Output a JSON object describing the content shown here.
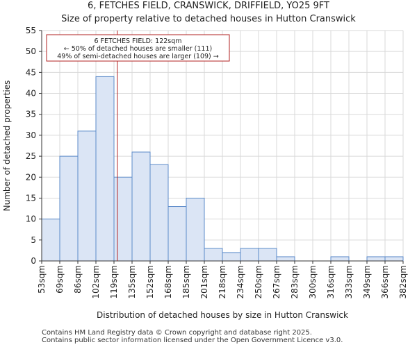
{
  "header": {
    "title": "6, FETCHES FIELD, CRANSWICK, DRIFFIELD, YO25 9FT",
    "subtitle": "Size of property relative to detached houses in Hutton Cranswick"
  },
  "footer": {
    "line1": "Contains HM Land Registry data © Crown copyright and database right 2025.",
    "line2": "Contains public sector information licensed under the Open Government Licence v3.0."
  },
  "colors": {
    "bar_fill": "#dbe5f5",
    "bar_stroke": "#5b8ac9",
    "marker": "#b22222",
    "grid": "#d9d9d9"
  },
  "chart_data": {
    "type": "bar",
    "title": "6, FETCHES FIELD, CRANSWICK, DRIFFIELD, YO25 9FT",
    "subtitle": "Size of property relative to detached houses in Hutton Cranswick",
    "xlabel": "Distribution of detached houses by size in Hutton Cranswick",
    "ylabel": "Number of detached properties",
    "bin_edges": [
      53,
      69,
      86,
      102,
      119,
      135,
      152,
      168,
      185,
      201,
      218,
      234,
      250,
      267,
      283,
      300,
      316,
      333,
      349,
      366,
      382
    ],
    "tick_labels": [
      "53sqm",
      "69sqm",
      "86sqm",
      "102sqm",
      "119sqm",
      "135sqm",
      "152sqm",
      "168sqm",
      "185sqm",
      "201sqm",
      "218sqm",
      "234sqm",
      "250sqm",
      "267sqm",
      "283sqm",
      "300sqm",
      "316sqm",
      "333sqm",
      "349sqm",
      "366sqm",
      "382sqm"
    ],
    "values": [
      10,
      25,
      31,
      44,
      20,
      26,
      23,
      13,
      15,
      3,
      2,
      3,
      3,
      1,
      0,
      0,
      1,
      0,
      1,
      1
    ],
    "ylim": [
      0,
      55
    ],
    "yticks": [
      0,
      5,
      10,
      15,
      20,
      25,
      30,
      35,
      40,
      45,
      50,
      55
    ],
    "grid": true,
    "marker": {
      "value": 122,
      "label": "6 FETCHES FIELD: 122sqm",
      "line2": "← 50% of detached houses are smaller (111)",
      "line3": "49% of semi-detached houses are larger (109) →"
    }
  }
}
